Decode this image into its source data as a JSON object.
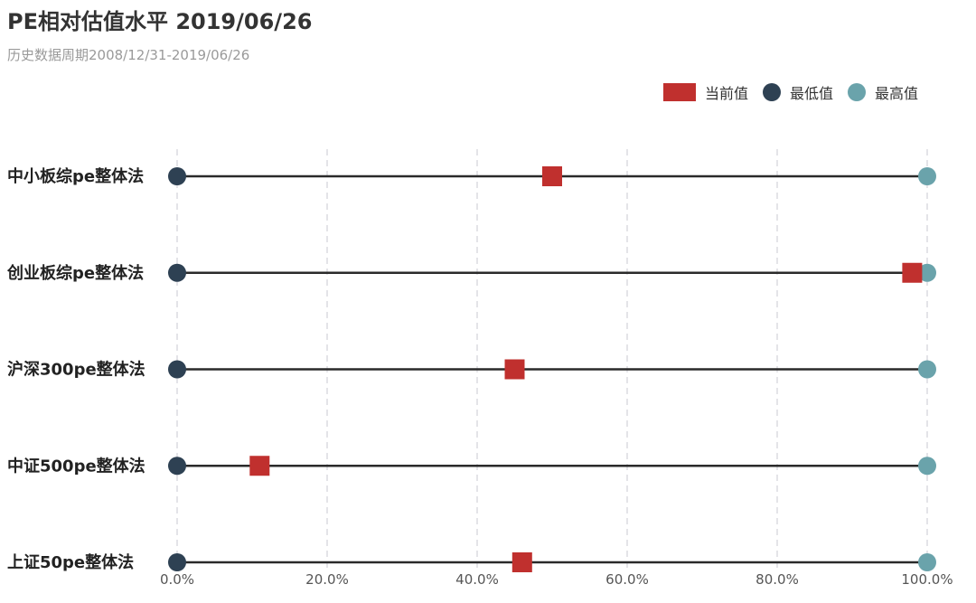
{
  "chart_data": {
    "type": "dumbbell",
    "title": "PE相对估值水平 2019/06/26",
    "subtitle": "历史数据周期2008/12/31-2019/06/26",
    "legend": {
      "current": "当前值",
      "min": "最低值",
      "max": "最高值",
      "placement": "top-right"
    },
    "colors": {
      "current": "#c0302e",
      "min": "#2e4153",
      "max": "#6aa3ab",
      "line": "#2a2a2a",
      "grid": "#c8c8d2"
    },
    "xlim": [
      0,
      100
    ],
    "ticks": [
      0,
      20,
      40,
      60,
      80,
      100
    ],
    "tick_labels": [
      "0.0%",
      "20.0%",
      "40.0%",
      "60.0%",
      "80.0%",
      "100.0%"
    ],
    "grid": true,
    "categories": [
      "中小板综pe整体法",
      "创业板综pe整体法",
      "沪深300pe整体法",
      "中证500pe整体法",
      "上证50pe整体法"
    ],
    "series": [
      {
        "name": "当前值",
        "values": [
          50.0,
          98.0,
          45.0,
          11.0,
          46.0
        ]
      },
      {
        "name": "最低值",
        "values": [
          0,
          0,
          0,
          0,
          0
        ]
      },
      {
        "name": "最高值",
        "values": [
          100,
          100,
          100,
          100,
          100
        ]
      }
    ]
  }
}
